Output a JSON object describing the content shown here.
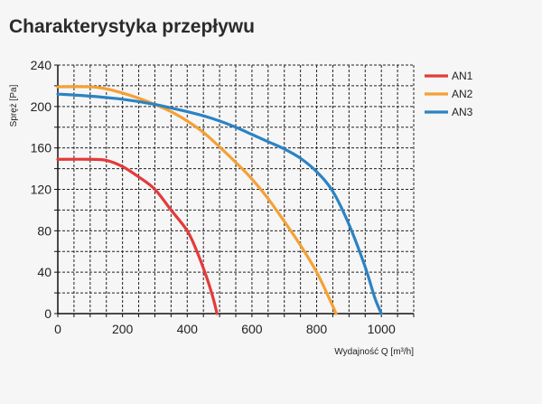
{
  "chart_data": {
    "type": "line",
    "title": "Charakterystyka przepływu",
    "xlabel": "Wydajność Q [m³/h]",
    "ylabel": "Spręż [Pa]",
    "xlim": [
      0,
      1100
    ],
    "ylim": [
      0,
      240
    ],
    "x_ticks": [
      0,
      200,
      400,
      600,
      800,
      1000
    ],
    "y_ticks": [
      0,
      40,
      80,
      120,
      160,
      200,
      240
    ],
    "grid": true,
    "legend_position": "right",
    "series": [
      {
        "name": "AN1",
        "color": "#e33b3b",
        "x": [
          0,
          100,
          150,
          200,
          250,
          300,
          350,
          400,
          430,
          460,
          480,
          492
        ],
        "y": [
          149,
          149,
          148,
          142,
          132,
          120,
          100,
          80,
          60,
          35,
          15,
          0
        ]
      },
      {
        "name": "AN2",
        "color": "#f4a135",
        "x": [
          0,
          100,
          150,
          200,
          250,
          300,
          350,
          400,
          450,
          500,
          550,
          600,
          650,
          700,
          750,
          800,
          840,
          860
        ],
        "y": [
          219,
          219,
          217,
          213,
          208,
          202,
          195,
          186,
          175,
          161,
          146,
          130,
          111,
          89,
          66,
          40,
          14,
          0
        ]
      },
      {
        "name": "AN3",
        "color": "#2b83c3",
        "x": [
          0,
          100,
          200,
          300,
          400,
          450,
          500,
          550,
          600,
          650,
          700,
          750,
          800,
          850,
          900,
          950,
          980,
          1000
        ],
        "y": [
          212,
          210,
          207,
          202,
          195,
          191,
          186,
          180,
          173,
          166,
          159,
          150,
          137,
          118,
          86,
          45,
          15,
          0
        ]
      }
    ]
  }
}
